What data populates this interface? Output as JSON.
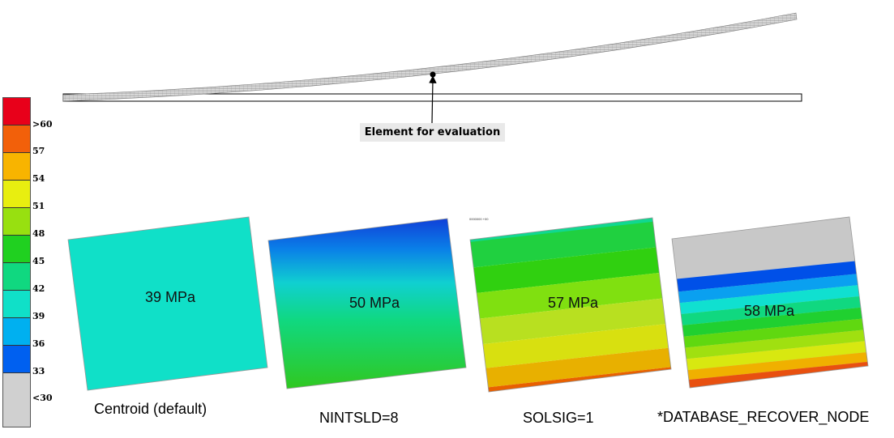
{
  "legend": {
    "colors": [
      "#e8001a",
      "#f2600a",
      "#f8b400",
      "#e8ee10",
      "#98e010",
      "#20d020",
      "#10d880",
      "#10e0c8",
      "#00b0f0",
      "#0060f0",
      "#d0d0d0"
    ],
    "labels": [
      ">60",
      "57",
      "54",
      "51",
      "48",
      "45",
      "42",
      "39",
      "36",
      "33",
      "<30"
    ]
  },
  "callout": {
    "text": "Element for evaluation"
  },
  "tiny_label": "0000000 +00",
  "panels": [
    {
      "name": "centroid",
      "value": "39 MPa",
      "caption": "Centroid (default)"
    },
    {
      "name": "nintsld",
      "value": "50 MPa",
      "caption": "NINTSLD=8"
    },
    {
      "name": "solsig",
      "value": "57 MPa",
      "caption": "SOLSIG=1"
    },
    {
      "name": "recover-node",
      "value": "58 MPa",
      "caption": "*DATABASE_RECOVER_NODE"
    }
  ]
}
